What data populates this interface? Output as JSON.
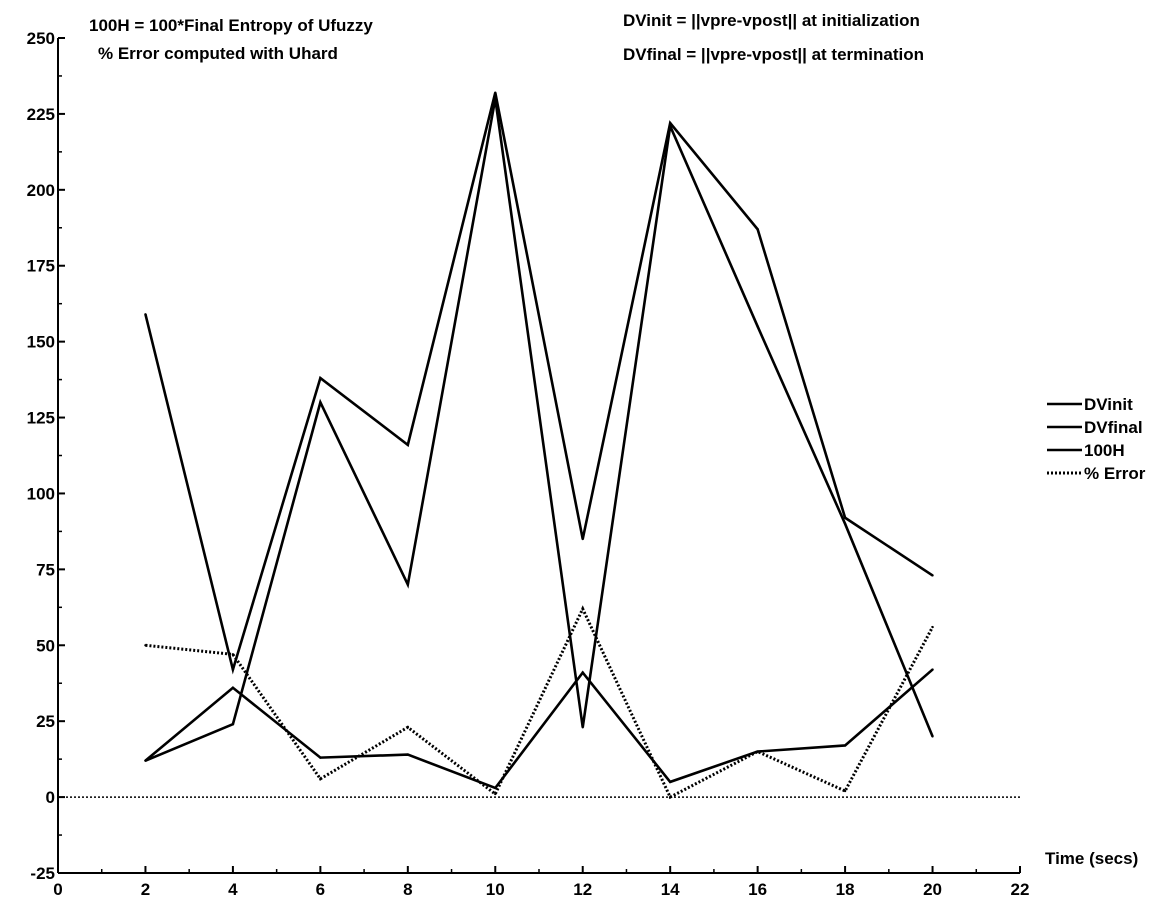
{
  "chart_data": {
    "type": "line",
    "title": "",
    "xlabel": "Time (secs)",
    "ylabel": "",
    "xlim": [
      0,
      22
    ],
    "ylim": [
      -25,
      250
    ],
    "x_ticks": [
      0,
      2,
      4,
      6,
      8,
      10,
      12,
      14,
      16,
      18,
      20,
      22
    ],
    "y_ticks": [
      -25,
      0,
      25,
      50,
      75,
      100,
      125,
      150,
      175,
      200,
      225,
      250
    ],
    "grid": false,
    "legend_position": "right",
    "annotations": [
      "100H = 100*Final Entropy of Ufuzzy",
      "% Error computed with Uhard",
      "DVinit   = ||vpre-vpost|| at initialization",
      "DVfinal = ||vpre-vpost|| at termination"
    ],
    "x": [
      2,
      4,
      6,
      8,
      10,
      12,
      14,
      16,
      18,
      20
    ],
    "series": [
      {
        "name": "DVinit",
        "style": "solid",
        "values": [
          159,
          42,
          138,
          116,
          232,
          85,
          222,
          187,
          92,
          73
        ]
      },
      {
        "name": "DVfinal",
        "style": "solid",
        "values": [
          12,
          24,
          130,
          70,
          230,
          23,
          221,
          155,
          90,
          20
        ]
      },
      {
        "name": "100H",
        "style": "solid",
        "values": [
          12,
          36,
          13,
          14,
          3,
          41,
          5,
          15,
          17,
          42
        ]
      },
      {
        "name": "% Error",
        "style": "dotted",
        "values": [
          50,
          47,
          6,
          23,
          1,
          62,
          0,
          15,
          2,
          56
        ]
      }
    ],
    "reference_line": {
      "y": 0,
      "style": "dotted"
    }
  }
}
